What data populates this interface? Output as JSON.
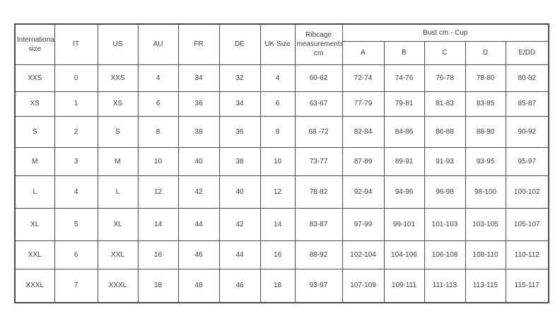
{
  "chart_data": {
    "type": "table",
    "title": "",
    "header": {
      "international": "International\nsize",
      "it": "IT",
      "us": "US",
      "au": "AU",
      "fr": "FR",
      "de": "DE",
      "uk_size": "UK Size",
      "ribcage": "Ribcage\nmeasurements\ncm",
      "bust_group": "Bust cm - Cup",
      "cups": [
        "A",
        "B",
        "C",
        "D",
        "E/DD"
      ]
    },
    "columns": [
      "International size",
      "IT",
      "US",
      "AU",
      "FR",
      "DE",
      "UK Size",
      "Ribcage measurements cm",
      "Bust cm - Cup A",
      "Bust cm - Cup B",
      "Bust cm - Cup C",
      "Bust cm - Cup D",
      "Bust cm - Cup E/DD"
    ],
    "rows": [
      [
        "XXS",
        "0",
        "XXS",
        "4",
        "34",
        "32",
        "4",
        "60-62",
        "72-74",
        "74-76",
        "76-78",
        "78-80",
        "80-82"
      ],
      [
        "XS",
        "1",
        "XS",
        "6",
        "36",
        "34",
        "6",
        "63-67",
        "77-79",
        "79-81",
        "81-83",
        "83-85",
        "85-87"
      ],
      [
        "S",
        "2",
        "S",
        "8",
        "38",
        "36",
        "8",
        "68 -72",
        "82-84",
        "84-86",
        "86-88",
        "88-90",
        "90-92"
      ],
      [
        "M",
        "3",
        "M",
        "10",
        "40",
        "38",
        "10",
        "73-77",
        "87-89",
        "89-91",
        "91-93",
        "93-95",
        "95-97"
      ],
      [
        "L",
        "4",
        "L",
        "12",
        "42",
        "40",
        "12",
        "78-82",
        "92-94",
        "94-96",
        "96-98",
        "98-100",
        "100-102"
      ],
      [
        "XL",
        "5",
        "XL",
        "14",
        "44",
        "42",
        "14",
        "83-87",
        "97-99",
        "99-101",
        "101-103",
        "103-105",
        "105-107"
      ],
      [
        "XXL",
        "6",
        "XXL",
        "16",
        "46",
        "44",
        "16",
        "88-92",
        "102-104",
        "104-106",
        "106-108",
        "108-110",
        "110-112"
      ],
      [
        "XXXL",
        "7",
        "XXXL",
        "18",
        "48",
        "46",
        "18",
        "93-97",
        "107-109",
        "109-111",
        "111-113",
        "113-115",
        "115-117"
      ]
    ],
    "layout_hints": {
      "grid": "on",
      "grouped_header": "Bust cm - Cup spans cup columns A, B, C, D, E/DD"
    }
  },
  "colors": {
    "background": "#ffffff",
    "border": "#4c4c4c",
    "text": "#3d3d3d"
  }
}
